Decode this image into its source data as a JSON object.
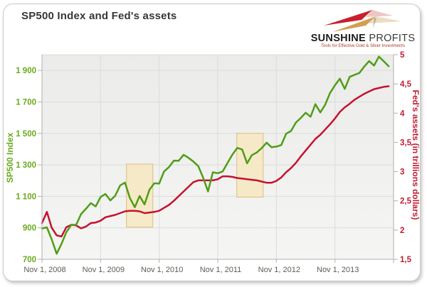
{
  "title": "SP500 Index and Fed's assets",
  "logo": {
    "name_bold": "SUNSHINE",
    "name_light": "PROFITS",
    "tagline": "Tools for Effective Gold & Silver Investments",
    "dart_red": "#c8202d",
    "dart_red_echo": "#dd9a91",
    "dart_gold": "#d2a050",
    "dart_gold_echo": "#e0c597"
  },
  "chart_data": {
    "type": "line",
    "title": "SP500 Index and Fed's assets",
    "x_axis": {
      "start": "Nov 1, 2008",
      "frequency": "monthly",
      "tick_labels": [
        "Nov 1, 2008",
        "Nov 1, 2009",
        "Nov 1, 2010",
        "Nov 1, 2011",
        "Nov 1, 2012",
        "Nov 1, 2013"
      ],
      "tick_label_color": "#5c5c5a"
    },
    "left_axis": {
      "label": "SP500 Index",
      "color": "#69aa1c",
      "range": [
        700,
        2000
      ],
      "tick_values": [
        700,
        900,
        1100,
        1300,
        1500,
        1700,
        1900
      ],
      "tick_labels": [
        "700",
        "900",
        "1 100",
        "1 300",
        "1 500",
        "1 700",
        "1 900"
      ]
    },
    "right_axis": {
      "label": "Fed's assets (in trillions dollars)",
      "color": "#c01d33",
      "range": [
        1.5,
        5
      ],
      "tick_values": [
        1.5,
        2,
        2.5,
        3,
        3.5,
        4,
        4.5,
        5
      ],
      "tick_labels": [
        "1,5",
        "2",
        "2,5",
        "3",
        "3,5",
        "4",
        "4,5",
        "5"
      ]
    },
    "grid": {
      "horizontal": true,
      "vertical": true
    },
    "series": [
      {
        "name": "SP500 Index",
        "axis": "left",
        "color": "#4f9d17",
        "values": [
          896,
          903,
          826,
          735,
          798,
          873,
          919,
          919,
          987,
          1021,
          1057,
          1036,
          1096,
          1115,
          1074,
          1104,
          1169,
          1187,
          1089,
          1031,
          1102,
          1049,
          1141,
          1183,
          1181,
          1258,
          1286,
          1327,
          1326,
          1364,
          1345,
          1321,
          1292,
          1219,
          1131,
          1253,
          1247,
          1258,
          1312,
          1366,
          1408,
          1398,
          1310,
          1362,
          1379,
          1407,
          1441,
          1412,
          1416,
          1426,
          1498,
          1515,
          1569,
          1598,
          1631,
          1606,
          1686,
          1633,
          1682,
          1757,
          1806,
          1848,
          1783,
          1859,
          1872,
          1884,
          1924,
          1960,
          1931,
          1988,
          1958,
          1927
        ]
      },
      {
        "name": "Fed's assets",
        "axis": "right",
        "color": "#c41230",
        "values": [
          2.12,
          2.31,
          2.04,
          1.91,
          1.89,
          2.05,
          2.09,
          2.08,
          2.03,
          2.06,
          2.12,
          2.13,
          2.16,
          2.22,
          2.24,
          2.26,
          2.29,
          2.32,
          2.33,
          2.33,
          2.32,
          2.29,
          2.3,
          2.31,
          2.33,
          2.38,
          2.43,
          2.5,
          2.58,
          2.66,
          2.74,
          2.82,
          2.85,
          2.85,
          2.85,
          2.85,
          2.87,
          2.92,
          2.92,
          2.91,
          2.89,
          2.88,
          2.87,
          2.86,
          2.85,
          2.83,
          2.81,
          2.81,
          2.84,
          2.9,
          2.99,
          3.06,
          3.15,
          3.26,
          3.36,
          3.46,
          3.56,
          3.63,
          3.72,
          3.81,
          3.91,
          4.02,
          4.1,
          4.16,
          4.23,
          4.28,
          4.33,
          4.37,
          4.41,
          4.43,
          4.45,
          4.46
        ]
      }
    ],
    "highlight_boxes": [
      {
        "from_month": 17.3,
        "to_month": 22.7,
        "value_low": 905,
        "value_high": 1305,
        "approx_dates": "Apr 2010 - Sep 2010",
        "fill": "#f7e8c1",
        "border": "#dcbe7e"
      },
      {
        "from_month": 39.9,
        "to_month": 45.3,
        "value_low": 1095,
        "value_high": 1500,
        "approx_dates": "Feb 2012 - Jul 2012",
        "fill": "#f7e8c1",
        "border": "#dcbe7e"
      }
    ]
  }
}
